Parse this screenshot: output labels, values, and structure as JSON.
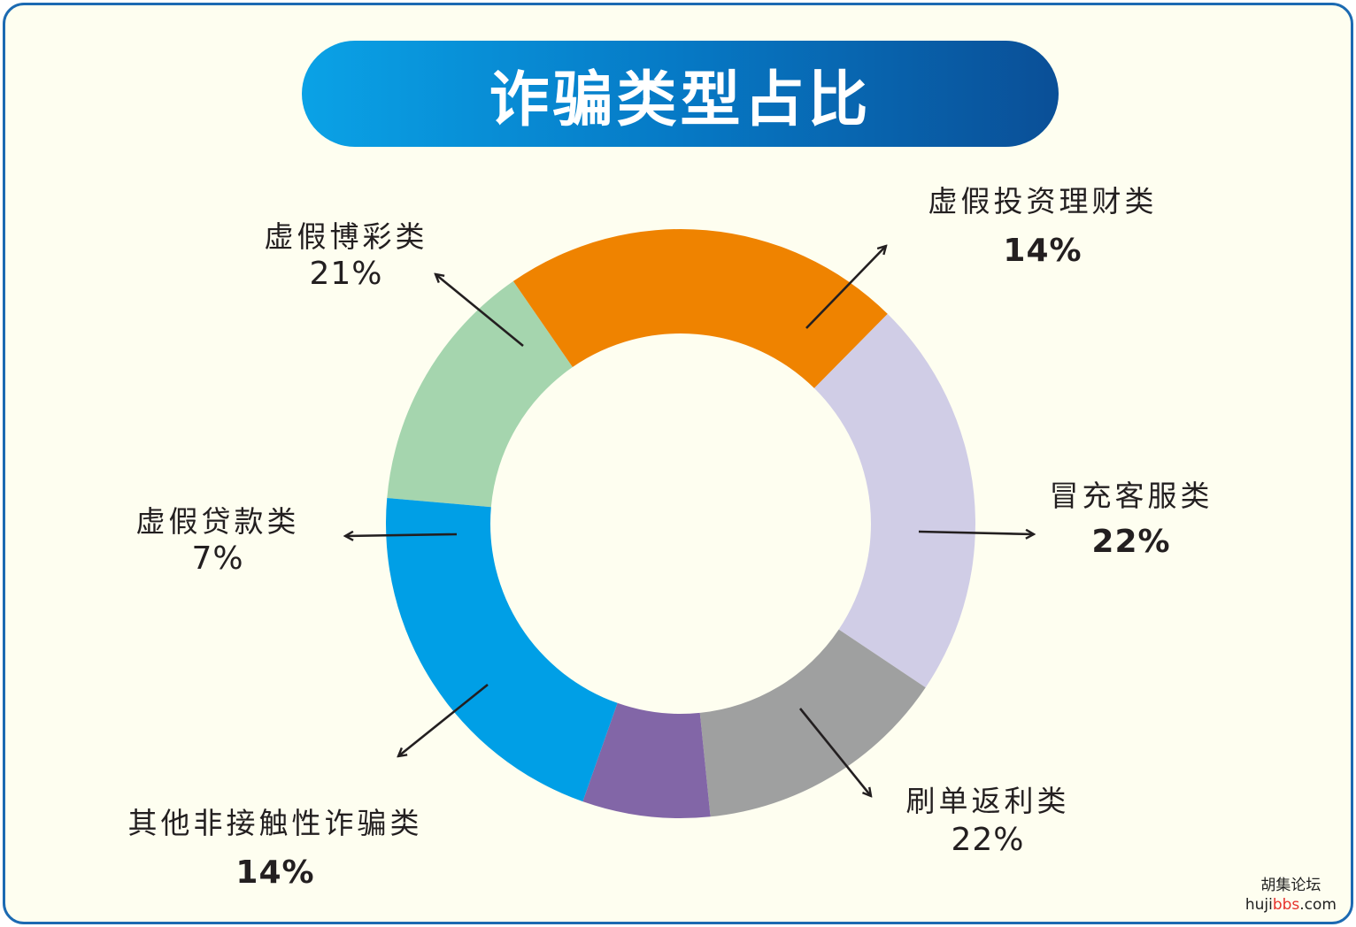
{
  "title": "诈骗类型占比",
  "watermark": {
    "cn": "胡集论坛",
    "domain_pre": "huji",
    "domain_brand": "bbs",
    "domain_post": ".com"
  },
  "chart_data": {
    "type": "pie",
    "variant": "donut",
    "title": "诈骗类型占比",
    "slices": [
      {
        "name": "虚假投资理财类",
        "label": "14%",
        "value": 14,
        "color": "#a5d5ae"
      },
      {
        "name": "冒充客服类",
        "label": "22%",
        "value": 22,
        "color": "#ef8300"
      },
      {
        "name": "刷单返利类",
        "label": "22%",
        "value": 22,
        "color": "#d0cde6"
      },
      {
        "name": "其他非接触性诈骗类",
        "label": "14%",
        "value": 14,
        "color": "#9fa0a0"
      },
      {
        "name": "虚假贷款类",
        "label": "7%",
        "value": 7,
        "color": "#8266a7"
      },
      {
        "name": "虚假博彩类",
        "label": "21%",
        "value": 21,
        "color": "#009fe6"
      }
    ]
  }
}
